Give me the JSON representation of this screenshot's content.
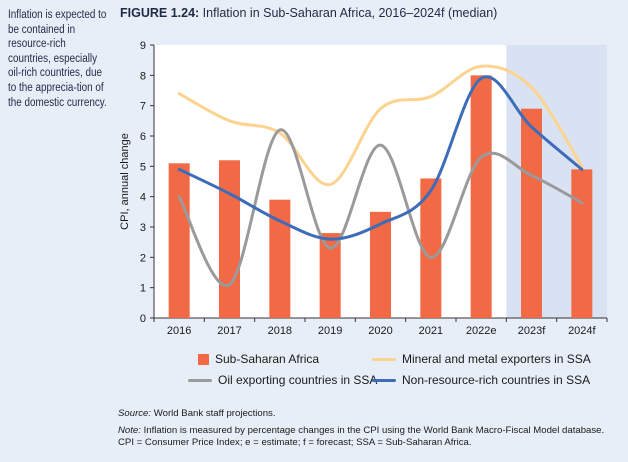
{
  "side_note": "Inflation is expected to be contained in resource-rich countries, especially oil-rich countries, due to the apprecia-tion of the domestic currency.",
  "figure": {
    "label": "FIGURE 1.24:",
    "title": "Inflation in Sub-Saharan Africa, 2016–2024f (median)"
  },
  "source": {
    "label": "Source:",
    "text": "World Bank staff projections."
  },
  "note": {
    "label": "Note:",
    "text": "Inflation is measured by percentage changes in the CPI using the World Bank Macro-Fiscal Model database. CPI = Consumer Price Index; e = estimate; f = forecast; SSA = Sub-Saharan Africa."
  },
  "chart_data": {
    "type": "bar",
    "ylabel": "CPI, annual change",
    "ylim": [
      0,
      9
    ],
    "yticks": [
      0,
      1,
      2,
      3,
      4,
      5,
      6,
      7,
      8,
      9
    ],
    "categories": [
      "2016",
      "2017",
      "2018",
      "2019",
      "2020",
      "2021",
      "2022e",
      "2023f",
      "2024f"
    ],
    "forecast_shading": [
      "2023f",
      "2024f"
    ],
    "legend_position": "bottom",
    "series": [
      {
        "name": "Sub-Saharan Africa",
        "kind": "bar",
        "color": "#f26a45",
        "values": [
          5.1,
          5.2,
          3.9,
          2.8,
          3.5,
          4.6,
          8.0,
          6.9,
          4.9
        ]
      },
      {
        "name": "Mineral and metal exporters in SSA",
        "kind": "line",
        "color": "#fcd38f",
        "values": [
          7.4,
          6.5,
          6.1,
          4.4,
          6.9,
          7.3,
          8.3,
          7.6,
          5.0
        ]
      },
      {
        "name": "Oil exporting countries in SSA",
        "kind": "line",
        "color": "#9a9a9a",
        "values": [
          4.0,
          1.1,
          6.2,
          2.3,
          5.7,
          2.0,
          5.3,
          4.7,
          3.8
        ]
      },
      {
        "name": "Non-resource-rich countries in SSA",
        "kind": "line",
        "color": "#3d6cb9",
        "values": [
          4.9,
          4.1,
          3.2,
          2.6,
          3.1,
          4.2,
          7.9,
          6.3,
          4.9
        ]
      }
    ]
  }
}
